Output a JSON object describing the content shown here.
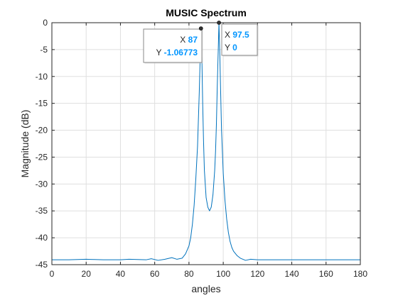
{
  "chart_data": {
    "type": "line",
    "title": "MUSIC Spectrum",
    "xlabel": "angles",
    "ylabel": "Magnitude (dB)",
    "xlim": [
      0,
      180
    ],
    "ylim": [
      -45,
      0
    ],
    "xticks": [
      0,
      20,
      40,
      60,
      80,
      100,
      120,
      140,
      160,
      180
    ],
    "yticks": [
      0,
      -5,
      -10,
      -15,
      -20,
      -25,
      -30,
      -35,
      -40,
      -45
    ],
    "grid": true,
    "line_color": "#0072bd",
    "series": [
      {
        "x": [
          0,
          10,
          20,
          25,
          30,
          40,
          45,
          50,
          55,
          58,
          62,
          66,
          70,
          73,
          76,
          78,
          80,
          81,
          82,
          83,
          84,
          85,
          85.5,
          86,
          86.5,
          87,
          87.5,
          88,
          88.5,
          89,
          90,
          91,
          92,
          93,
          94,
          95,
          95.5,
          96,
          96.5,
          97,
          97.5,
          98,
          98.5,
          99,
          100,
          101,
          102,
          103,
          104,
          105,
          106,
          108,
          110,
          113,
          116,
          120,
          125,
          130,
          140,
          150,
          160,
          170,
          180
        ],
        "y": [
          -44.1,
          -44.1,
          -44.0,
          -44.05,
          -44.1,
          -44.1,
          -44.0,
          -44.05,
          -44.1,
          -43.9,
          -44.2,
          -44.0,
          -43.7,
          -44.0,
          -43.8,
          -43.0,
          -41.5,
          -40.0,
          -37.5,
          -34.0,
          -29.0,
          -23.0,
          -18.0,
          -13.0,
          -7.0,
          -1.07,
          -6.0,
          -15.0,
          -22.0,
          -27.5,
          -32.5,
          -34.3,
          -35.0,
          -34.3,
          -32.0,
          -27.5,
          -24.0,
          -19.0,
          -12.0,
          -6.0,
          0,
          -6.0,
          -13.0,
          -20.0,
          -28.0,
          -33.0,
          -36.5,
          -39.0,
          -40.7,
          -41.8,
          -42.5,
          -43.3,
          -43.8,
          -44.2,
          -44.0,
          -44.1,
          -44.1,
          -44.1,
          -44.1,
          -44.1,
          -44.1,
          -44.1,
          -44.1
        ]
      }
    ],
    "datatips": [
      {
        "x_key": "X",
        "x_value": "87",
        "y_key": "Y",
        "y_value": "-1.06773",
        "x": 87,
        "y": -1.06773
      },
      {
        "x_key": "X",
        "x_value": "97.5",
        "y_key": "Y",
        "y_value": "0",
        "x": 97.5,
        "y": 0
      }
    ],
    "tip_value_color": "#0095ff"
  }
}
